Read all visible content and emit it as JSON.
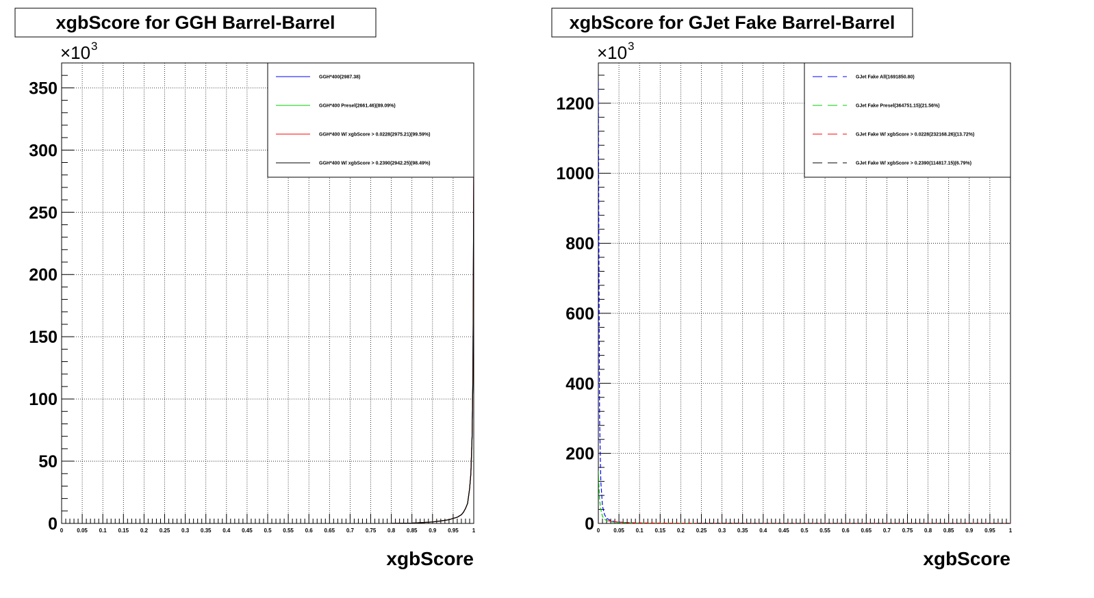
{
  "chart_data": [
    {
      "type": "line",
      "title": "xgbScore for GGH Barrel-Barrel",
      "xlabel": "xgbScore",
      "ylabel": "",
      "y_multiplier_label": "×10",
      "y_multiplier_exponent": "3",
      "xlim": [
        0,
        1
      ],
      "ylim": [
        0,
        350
      ],
      "x_ticks": [
        "0",
        "0.05",
        "0.1",
        "0.15",
        "0.2",
        "0.25",
        "0.3",
        "0.35",
        "0.4",
        "0.45",
        "0.5",
        "0.55",
        "0.6",
        "0.65",
        "0.7",
        "0.75",
        "0.8",
        "0.85",
        "0.9",
        "0.95",
        "1"
      ],
      "y_ticks": [
        "0",
        "50",
        "100",
        "150",
        "200",
        "250",
        "300",
        "350"
      ],
      "grid": true,
      "legend_position": "top-right",
      "series": [
        {
          "name": "GGH*400(2987.38)",
          "color": "#0000ff",
          "dash": "solid",
          "x": [
            0.8,
            0.85,
            0.88,
            0.9,
            0.92,
            0.94,
            0.95,
            0.96,
            0.97,
            0.975,
            0.98,
            0.985,
            0.99,
            0.993,
            0.996,
            0.998,
            0.999,
            1.0
          ],
          "y": [
            0,
            0.3,
            0.8,
            1.2,
            2,
            3,
            4,
            5,
            7,
            9,
            12,
            16,
            28,
            40,
            70,
            120,
            200,
            280
          ]
        },
        {
          "name": "GGH*400 Presel(2661.46)(89.09%)",
          "color": "#00cc00",
          "dash": "solid",
          "x": [
            0.8,
            0.85,
            0.88,
            0.9,
            0.92,
            0.94,
            0.95,
            0.96,
            0.97,
            0.975,
            0.98,
            0.985,
            0.99,
            0.993,
            0.996,
            0.998,
            0.999,
            1.0
          ],
          "y": [
            0,
            0.3,
            0.8,
            1.2,
            2,
            3,
            4,
            5,
            7,
            9,
            12,
            16,
            28,
            40,
            70,
            120,
            185,
            260
          ]
        },
        {
          "name": "GGH*400 W/ xgbScore > 0.0228(2975.21)(99.59%)",
          "color": "#ff0000",
          "dash": "solid",
          "x": [
            0.8,
            0.85,
            0.88,
            0.9,
            0.92,
            0.94,
            0.95,
            0.96,
            0.97,
            0.975,
            0.98,
            0.985,
            0.99,
            0.993,
            0.996,
            0.998,
            0.999,
            1.0
          ],
          "y": [
            0,
            0.3,
            0.8,
            1.2,
            2,
            3,
            4,
            5,
            7,
            9,
            12,
            16,
            28,
            40,
            70,
            120,
            200,
            280
          ]
        },
        {
          "name": "GGH*400 W/ xgbScore > 0.2390(2942.25)(98.49%)",
          "color": "#000000",
          "dash": "solid",
          "x": [
            0.8,
            0.85,
            0.88,
            0.9,
            0.92,
            0.94,
            0.95,
            0.96,
            0.97,
            0.975,
            0.98,
            0.985,
            0.99,
            0.993,
            0.996,
            0.998,
            0.999,
            1.0
          ],
          "y": [
            0,
            0.3,
            0.8,
            1.2,
            2,
            3,
            4,
            5,
            7,
            9,
            12,
            16,
            28,
            40,
            70,
            120,
            200,
            280
          ]
        }
      ]
    },
    {
      "type": "line",
      "title": "xgbScore for GJet Fake Barrel-Barrel",
      "xlabel": "xgbScore",
      "ylabel": "",
      "y_multiplier_label": "×10",
      "y_multiplier_exponent": "3",
      "xlim": [
        0,
        1
      ],
      "ylim": [
        0,
        1200
      ],
      "x_ticks": [
        "0",
        "0.05",
        "0.1",
        "0.15",
        "0.2",
        "0.25",
        "0.3",
        "0.35",
        "0.4",
        "0.45",
        "0.5",
        "0.55",
        "0.6",
        "0.65",
        "0.7",
        "0.75",
        "0.8",
        "0.85",
        "0.9",
        "0.95",
        "1"
      ],
      "y_ticks": [
        "0",
        "200",
        "400",
        "600",
        "800",
        "1000",
        "1200"
      ],
      "grid": true,
      "legend_position": "top-right",
      "series": [
        {
          "name": "GJet Fake All(1691850.80)",
          "color": "#0000ff",
          "dash": "dashed",
          "x": [
            0.0,
            0.001,
            0.003,
            0.006,
            0.01,
            0.015,
            0.02,
            0.03,
            0.04,
            0.06,
            0.08,
            0.1,
            0.15,
            0.2,
            0.3,
            0.5,
            0.7,
            1.0
          ],
          "y": [
            1260,
            900,
            300,
            120,
            50,
            25,
            15,
            8,
            5,
            3,
            2,
            1,
            0.5,
            0.3,
            0.1,
            0,
            0,
            0
          ]
        },
        {
          "name": "GJet Fake Presel(364751.15)(21.56%)",
          "color": "#00cc00",
          "dash": "dashed",
          "x": [
            0.0,
            0.001,
            0.003,
            0.006,
            0.01,
            0.015,
            0.02,
            0.03,
            0.04,
            0.06,
            0.08,
            0.1,
            0.15,
            0.2,
            0.3,
            0.5,
            0.7,
            1.0
          ],
          "y": [
            150,
            120,
            70,
            40,
            20,
            12,
            8,
            5,
            3,
            2,
            1,
            0.5,
            0.3,
            0.2,
            0.1,
            0,
            0,
            0
          ]
        },
        {
          "name": "GJet Fake W/ xgbScore > 0.0228(232168.26)(13.72%)",
          "color": "#ff0000",
          "dash": "dashed",
          "x": [
            0.023,
            0.03,
            0.04,
            0.05,
            0.06,
            0.08,
            0.1,
            0.15,
            0.2,
            0.3,
            0.5,
            0.7,
            1.0
          ],
          "y": [
            8,
            6,
            5,
            4,
            3,
            2,
            1.5,
            1,
            0.5,
            0.2,
            0.1,
            0,
            0
          ]
        },
        {
          "name": "GJet Fake W/ xgbScore > 0.2390(114817.15)(6.79%)",
          "color": "#000000",
          "dash": "dashed",
          "x": [
            0.24,
            0.3,
            0.4,
            0.5,
            0.6,
            0.7,
            0.8,
            0.9,
            1.0
          ],
          "y": [
            0.3,
            0.2,
            0.15,
            0.1,
            0.08,
            0.05,
            0.03,
            0.02,
            0
          ]
        }
      ]
    }
  ]
}
